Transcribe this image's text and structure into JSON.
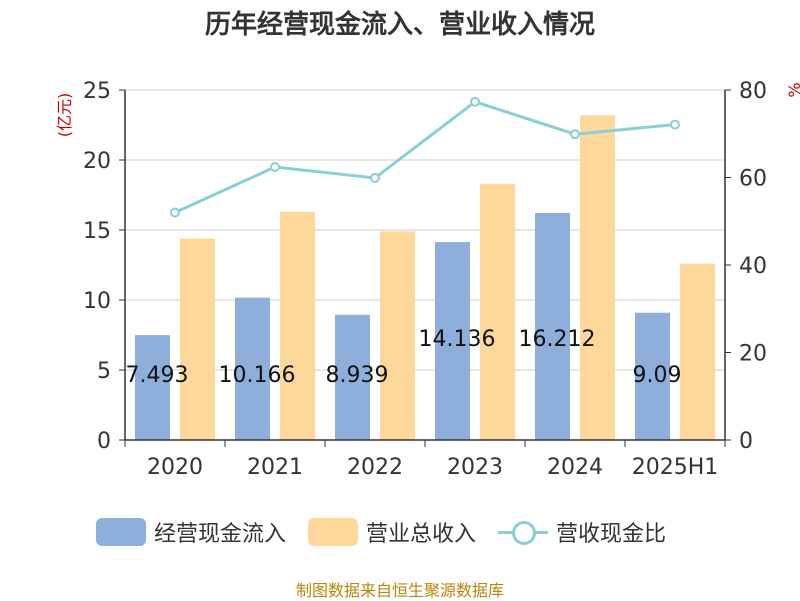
{
  "chart_data": {
    "type": "bar",
    "title": "历年经营现金流入、营业收入情况",
    "left_axis_unit": "(亿元)",
    "right_axis_unit": "%",
    "categories": [
      "2020",
      "2021",
      "2022",
      "2023",
      "2024",
      "2025H1"
    ],
    "left_ylim": [
      0,
      25
    ],
    "left_ticks": [
      0,
      5,
      10,
      15,
      20,
      25
    ],
    "right_ylim": [
      0,
      80
    ],
    "right_ticks": [
      0,
      20,
      40,
      60,
      80
    ],
    "grid": true,
    "legend_position": "bottom",
    "series": [
      {
        "name": "经营现金流入",
        "type": "bar",
        "axis": "left",
        "color": "#8eaedb",
        "values": [
          7.493,
          10.166,
          8.939,
          14.136,
          16.212,
          9.09
        ],
        "labels": [
          "7.493",
          "10.166",
          "8.939",
          "14.136",
          "16.212",
          "9.09"
        ]
      },
      {
        "name": "营业总收入",
        "type": "bar",
        "axis": "left",
        "color": "#fdd89a",
        "values": [
          14.4,
          16.3,
          14.9,
          18.3,
          23.2,
          12.6
        ]
      },
      {
        "name": "营收现金比",
        "type": "line",
        "axis": "right",
        "color": "#88d0d6",
        "values": [
          52.0,
          62.4,
          59.9,
          77.3,
          69.9,
          72.1
        ]
      }
    ]
  },
  "source": "制图数据来自恒生聚源数据库"
}
